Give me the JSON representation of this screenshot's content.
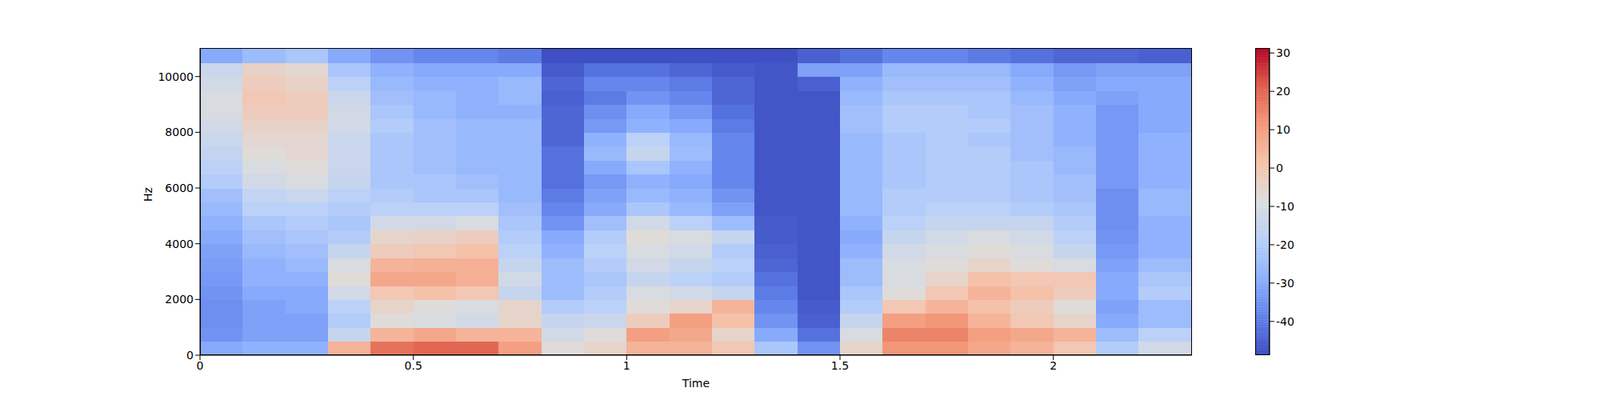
{
  "chart_data": {
    "type": "heatmap",
    "xlabel": "Time",
    "ylabel": "Hz",
    "xlim": [
      0,
      2.325
    ],
    "ylim": [
      0,
      11025
    ],
    "xticks": [
      0,
      0.5,
      1,
      1.5,
      2
    ],
    "yticks": [
      0,
      2000,
      4000,
      6000,
      8000,
      10000
    ],
    "x_edges": [
      0,
      0.1,
      0.2,
      0.3,
      0.4,
      0.5,
      0.6,
      0.7,
      0.8,
      0.9,
      1.0,
      1.1,
      1.2,
      1.3,
      1.4,
      1.5,
      1.6,
      1.7,
      1.8,
      1.9,
      2.0,
      2.1,
      2.2,
      2.325
    ],
    "y_edges": [
      0,
      500,
      1000,
      1500,
      2000,
      2500,
      3000,
      3500,
      4000,
      4500,
      5000,
      5500,
      6000,
      6500,
      7000,
      7500,
      8000,
      8500,
      9000,
      9500,
      10000,
      10500,
      11025
    ],
    "values": [
      [
        -30,
        -35,
        -36,
        -36,
        -35,
        -34,
        -33,
        -32,
        -30,
        -28,
        -26,
        -24,
        -20,
        -18,
        -16,
        -14,
        -12,
        -10,
        -10,
        -12,
        -14,
        -30
      ],
      [
        -28,
        -32,
        -32,
        -32,
        -30,
        -28,
        -28,
        -26,
        -24,
        -22,
        -18,
        -16,
        -12,
        -10,
        -8,
        -6,
        -4,
        -2,
        0,
        -2,
        -4,
        -25
      ],
      [
        -28,
        -32,
        -32,
        -30,
        -30,
        -28,
        -26,
        -24,
        -22,
        -20,
        -18,
        -14,
        -10,
        -8,
        -6,
        -6,
        -4,
        -2,
        -2,
        -4,
        -6,
        -22
      ],
      [
        5,
        -15,
        -20,
        -18,
        -12,
        -8,
        -10,
        -15,
        -20,
        -22,
        -20,
        -18,
        -15,
        -14,
        -14,
        -14,
        -12,
        -12,
        -14,
        -18,
        -22,
        -30
      ],
      [
        18,
        5,
        -8,
        -5,
        0,
        8,
        5,
        -2,
        -5,
        -12,
        -18,
        -20,
        -22,
        -22,
        -22,
        -22,
        -20,
        -22,
        -24,
        -26,
        -28,
        -35
      ],
      [
        20,
        8,
        -10,
        -8,
        2,
        8,
        6,
        0,
        -4,
        -12,
        -18,
        -22,
        -22,
        -24,
        -24,
        -24,
        -24,
        -26,
        -26,
        -28,
        -30,
        -38
      ],
      [
        20,
        5,
        -12,
        -10,
        0,
        6,
        6,
        2,
        -2,
        -10,
        -18,
        -22,
        -24,
        -26,
        -26,
        -26,
        -26,
        -28,
        -28,
        -28,
        -30,
        -38
      ],
      [
        10,
        5,
        -5,
        -5,
        -15,
        -12,
        -15,
        -18,
        -20,
        -22,
        -24,
        -26,
        -26,
        -26,
        -26,
        -26,
        -26,
        -28,
        -26,
        -26,
        -30,
        -40
      ],
      [
        -8,
        -12,
        -15,
        -20,
        -25,
        -25,
        -25,
        -28,
        -30,
        -35,
        -38,
        -40,
        -42,
        -42,
        -42,
        -44,
        -44,
        -44,
        -45,
        -44,
        -46,
        -48
      ],
      [
        -5,
        -8,
        -14,
        -18,
        -20,
        -22,
        -20,
        -18,
        -20,
        -24,
        -30,
        -32,
        -34,
        -30,
        -26,
        -28,
        -34,
        -36,
        -40,
        -38,
        -42,
        -48
      ],
      [
        5,
        10,
        -2,
        -8,
        -10,
        -15,
        -12,
        -10,
        -8,
        -12,
        -22,
        -26,
        -28,
        -22,
        -15,
        -18,
        -28,
        -30,
        -35,
        -38,
        -42,
        -48
      ],
      [
        5,
        8,
        10,
        -5,
        -12,
        -18,
        -15,
        -12,
        -10,
        -18,
        -26,
        -28,
        -30,
        -28,
        -25,
        -26,
        -30,
        -34,
        -38,
        -40,
        -44,
        -48
      ],
      [
        0,
        -5,
        2,
        5,
        -15,
        -20,
        -18,
        -20,
        -15,
        -25,
        -32,
        -35,
        -38,
        -38,
        -38,
        -38,
        -40,
        -42,
        -44,
        -44,
        -46,
        -48
      ],
      [
        -22,
        -30,
        -35,
        -38,
        -40,
        -42,
        -44,
        -45,
        -46,
        -46,
        -47,
        -47,
        -47,
        -47,
        -47,
        -47,
        -47,
        -47,
        -47,
        -47,
        -47,
        -48
      ],
      [
        -35,
        -42,
        -45,
        -46,
        -47,
        -47,
        -47,
        -47,
        -47,
        -47,
        -47,
        -47,
        -47,
        -47,
        -47,
        -47,
        -47,
        -47,
        -47,
        -45,
        -32,
        -45
      ],
      [
        -5,
        -10,
        -15,
        -20,
        -22,
        -25,
        -25,
        -28,
        -30,
        -28,
        -26,
        -26,
        -26,
        -26,
        -26,
        -26,
        -24,
        -24,
        -26,
        -28,
        -32,
        -42
      ],
      [
        12,
        15,
        10,
        0,
        -8,
        -10,
        -10,
        -12,
        -15,
        -18,
        -20,
        -20,
        -22,
        -22,
        -22,
        -22,
        -20,
        -20,
        -22,
        -24,
        -26,
        -38
      ],
      [
        12,
        15,
        12,
        5,
        0,
        -5,
        -8,
        -10,
        -12,
        -15,
        -18,
        -20,
        -20,
        -20,
        -20,
        -20,
        -20,
        -20,
        -22,
        -24,
        -26,
        -38
      ],
      [
        8,
        10,
        5,
        2,
        5,
        2,
        -5,
        -8,
        -10,
        -15,
        -18,
        -20,
        -20,
        -20,
        -20,
        -22,
        -20,
        -22,
        -22,
        -24,
        -26,
        -40
      ],
      [
        5,
        8,
        0,
        -2,
        2,
        0,
        -8,
        -10,
        -12,
        -15,
        -20,
        -22,
        -22,
        -22,
        -24,
        -24,
        -24,
        -24,
        -26,
        -28,
        -30,
        -42
      ],
      [
        0,
        5,
        -5,
        -8,
        -2,
        0,
        -10,
        -15,
        -18,
        -20,
        -22,
        -24,
        -24,
        -26,
        -26,
        -28,
        -28,
        -28,
        -30,
        -32,
        -34,
        -44
      ],
      [
        -20,
        -25,
        -30,
        -32,
        -30,
        -30,
        -32,
        -34,
        -35,
        -36,
        -36,
        -36,
        -34,
        -34,
        -34,
        -34,
        -34,
        -34,
        -32,
        -30,
        -32,
        -44
      ],
      [
        -12,
        -18,
        -25,
        -25,
        -20,
        -22,
        -25,
        -28,
        -28,
        -28,
        -26,
        -26,
        -28,
        -28,
        -28,
        -28,
        -30,
        -30,
        -30,
        -30,
        -32,
        -45
      ]
    ],
    "colorbar_range": [
      -48.8,
      31.3
    ],
    "colorbar_ticks": [
      -40,
      -30,
      -20,
      -10,
      0,
      10,
      20,
      30
    ]
  }
}
